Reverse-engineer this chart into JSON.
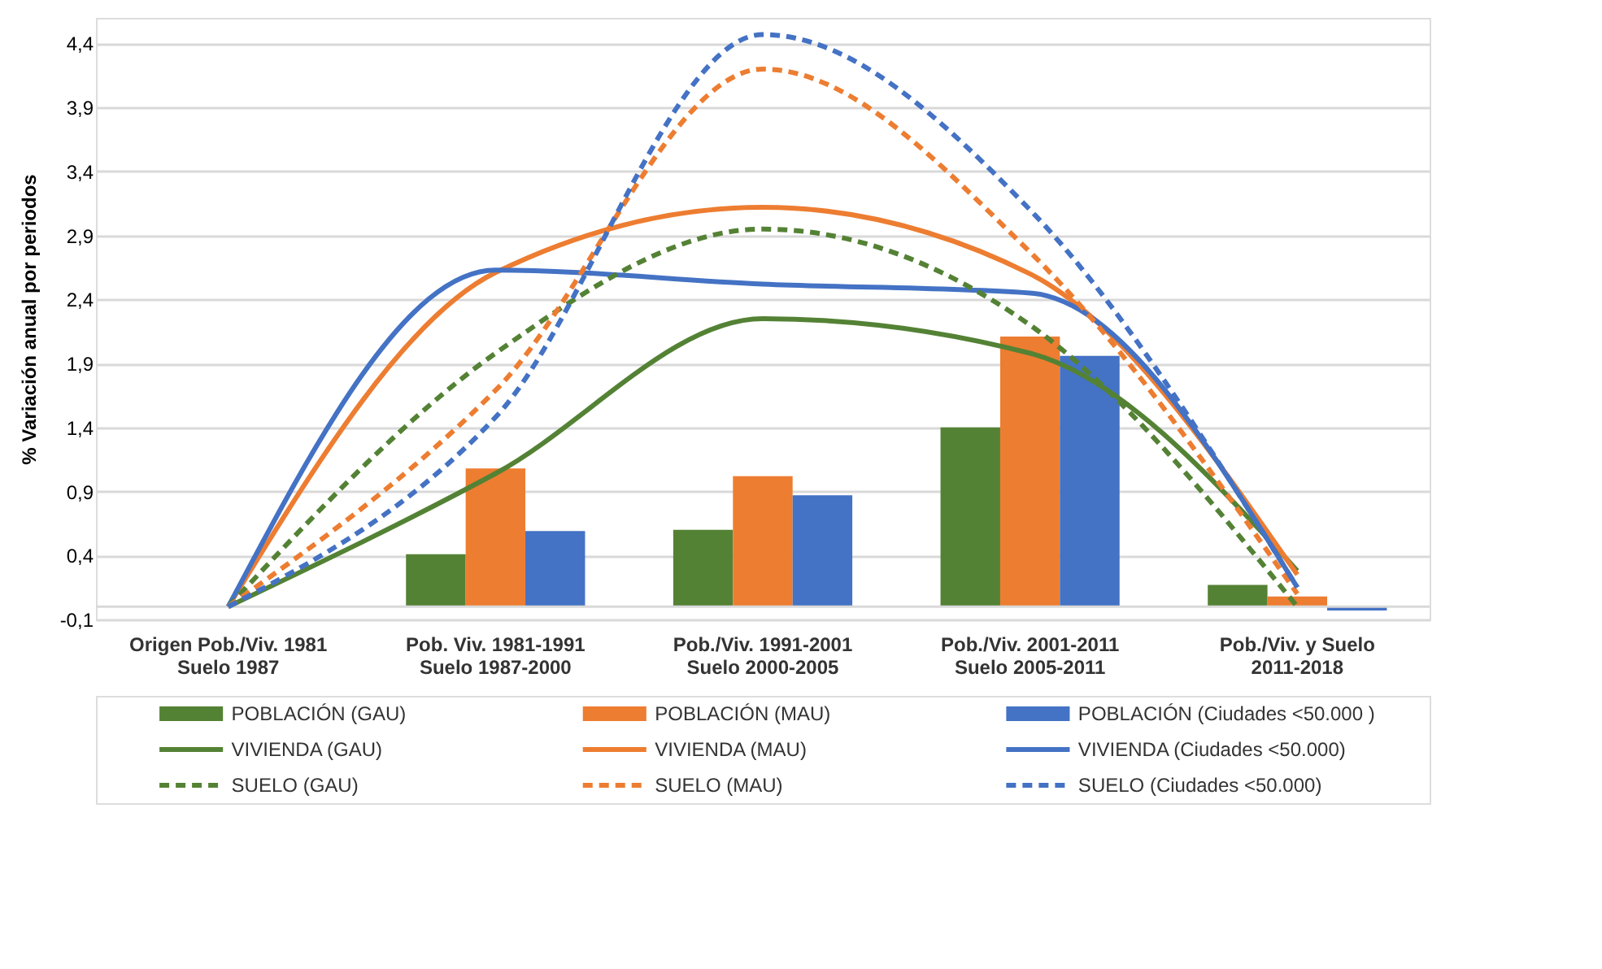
{
  "chart_data": {
    "type": "bar",
    "ylabel": "% Variación anual por periodos",
    "categories": [
      "Origen Pob./Viv. 1981\nSuelo 1987",
      "Pob. Viv. 1981-1991\nSuelo 1987-2000",
      "Pob./Viv. 1991-2001\nSuelo 2000-2005",
      "Pob./Viv. 2001-2011\nSuelo 2005-2011",
      "Pob./Viv. y Suelo\n2011-2018"
    ],
    "ylim": [
      -0.1,
      4.6
    ],
    "yticks": [
      {
        "value": -0.1,
        "label": "-0,1"
      },
      {
        "value": 0.4,
        "label": "0,4"
      },
      {
        "value": 0.9,
        "label": "0,9"
      },
      {
        "value": 1.4,
        "label": "1,4"
      },
      {
        "value": 1.9,
        "label": "1,9"
      },
      {
        "value": 2.4,
        "label": "2,4"
      },
      {
        "value": 2.9,
        "label": "2,9"
      },
      {
        "value": 3.4,
        "label": "3,4"
      },
      {
        "value": 3.9,
        "label": "3,9"
      },
      {
        "value": 4.4,
        "label": "4,4"
      }
    ],
    "grid": "y",
    "legend": "bottom",
    "ref_lines": [
      {
        "axis": "y",
        "value": 0,
        "color": "#d9d9d9"
      }
    ],
    "series": [
      {
        "name": "POBLACIÓN (GAU)",
        "color": "#548235",
        "values": [
          null,
          0.41,
          0.6,
          1.4,
          0.17
        ]
      },
      {
        "name": "POBLACIÓN (MAU)",
        "color": "#ed7d31",
        "values": [
          null,
          1.08,
          1.02,
          2.11,
          0.08
        ]
      },
      {
        "name": "POBLACIÓN (Ciudades <50.000 )",
        "color": "#4472c4",
        "values": [
          null,
          0.59,
          0.87,
          1.96,
          -0.03
        ]
      },
      {
        "name": "VIVIENDA (GAU)",
        "type": "line",
        "line_style": "solid",
        "color": "#548235",
        "values": [
          0,
          1.04,
          2.25,
          1.98,
          0.28
        ]
      },
      {
        "name": "VIVIENDA (MAU)",
        "type": "line",
        "line_style": "solid",
        "color": "#ed7d31",
        "values": [
          0,
          2.61,
          3.12,
          2.6,
          0.25
        ]
      },
      {
        "name": "VIVIENDA (Ciudades <50.000)",
        "type": "line",
        "line_style": "solid",
        "color": "#4472c4",
        "values": [
          0,
          2.63,
          2.52,
          2.45,
          0.15
        ]
      },
      {
        "name": "SUELO (GAU)",
        "type": "line",
        "line_style": "dashed",
        "color": "#548235",
        "values": [
          0,
          1.98,
          2.95,
          2.2,
          0.0
        ]
      },
      {
        "name": "SUELO (MAU)",
        "type": "line",
        "line_style": "dashed",
        "color": "#ed7d31",
        "values": [
          0,
          1.69,
          4.2,
          2.77,
          0.1
        ]
      },
      {
        "name": "SUELO (Ciudades <50.000)",
        "type": "line",
        "line_style": "dashed",
        "color": "#4472c4",
        "values": [
          0,
          1.48,
          4.47,
          3.1,
          0.15
        ]
      }
    ]
  }
}
